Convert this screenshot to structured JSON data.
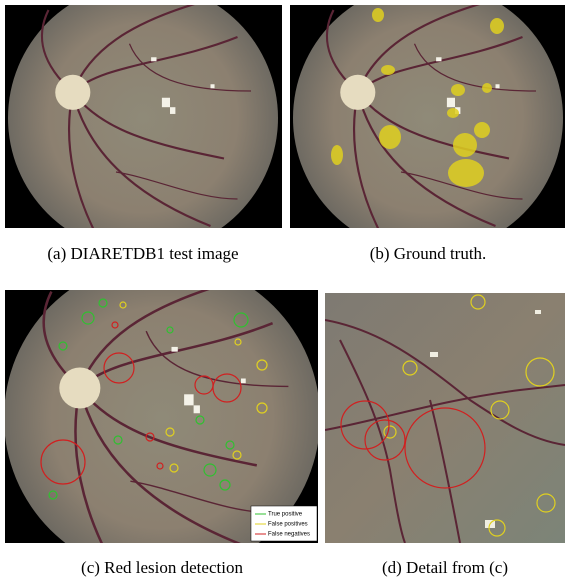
{
  "panels": [
    {
      "caption": "(a)  DIARETDB1 test image"
    },
    {
      "caption": "(b)  Ground truth."
    },
    {
      "caption": "(c)  Red lesion detection"
    },
    {
      "caption": "(d)  Detail from (c)"
    }
  ],
  "legend": [
    "True positive",
    "False positives",
    "False negatives"
  ]
}
